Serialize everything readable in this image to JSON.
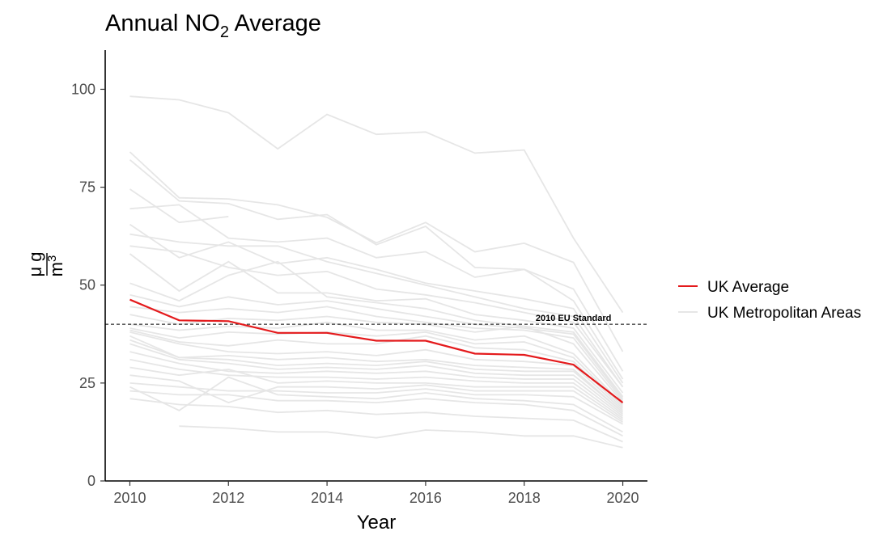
{
  "chart_data": {
    "type": "line",
    "title": "Annual NO₂ Average",
    "title_parts": {
      "main": "Annual NO",
      "sub": "2",
      "rest": " Average"
    },
    "xlabel": "Year",
    "ylabel": {
      "numerator": "μ g",
      "denominator": "m",
      "superscript": "3"
    },
    "xlim": [
      2009.5,
      2020.5
    ],
    "ylim": [
      0,
      110
    ],
    "x_ticks": [
      2010,
      2012,
      2014,
      2016,
      2018,
      2020
    ],
    "y_ticks": [
      0,
      25,
      50,
      75,
      100
    ],
    "grid": false,
    "legend_position": "right",
    "reference_line": {
      "y": 40,
      "label": "2010 EU Standard",
      "style": "dashed",
      "color": "#000000"
    },
    "x": [
      2010,
      2011,
      2012,
      2013,
      2014,
      2015,
      2016,
      2017,
      2018,
      2019,
      2020
    ],
    "series": [
      {
        "name": "UK Average",
        "color": "#e41a1c",
        "values": [
          46.3,
          41.0,
          40.8,
          37.8,
          37.8,
          35.8,
          35.8,
          32.5,
          32.2,
          29.7,
          20.0
        ]
      },
      {
        "name": "UK Metropolitan Areas",
        "color": "#e6e6e6",
        "lines": [
          [
            98.2,
            97.3,
            94.0,
            84.8,
            93.6,
            88.5,
            89.1,
            83.7,
            84.5,
            62.0,
            43.0
          ],
          [
            84.0,
            72.3,
            72.0,
            70.5,
            67.3,
            60.8,
            66.0,
            58.5,
            60.7,
            55.8,
            33.0
          ],
          [
            82.0,
            71.5,
            70.8,
            66.8,
            68.0,
            60.3,
            65.0,
            54.5,
            54.0,
            49.0,
            28.0
          ],
          [
            74.5,
            66.0,
            67.5,
            null,
            null,
            null,
            null,
            null,
            null,
            null,
            null
          ],
          [
            69.5,
            70.5,
            62.0,
            61.0,
            62.0,
            57.0,
            58.5,
            52.0,
            54.0,
            46.0,
            26.0
          ],
          [
            65.5,
            57.0,
            61.0,
            55.5,
            57.0,
            54.0,
            50.5,
            48.5,
            46.5,
            44.0,
            25.0
          ],
          [
            63.0,
            61.0,
            60.0,
            60.0,
            56.0,
            53.0,
            50.0,
            47.0,
            44.0,
            42.0,
            24.0
          ],
          [
            60.0,
            58.5,
            54.5,
            52.5,
            53.5,
            49.0,
            47.5,
            45.5,
            43.0,
            40.5,
            24.0
          ],
          [
            58.0,
            48.5,
            56.0,
            48.0,
            48.0,
            46.0,
            46.5,
            42.5,
            41.0,
            39.0,
            22.5
          ],
          [
            50.5,
            46.0,
            52.5,
            56.0,
            47.0,
            45.5,
            44.0,
            41.0,
            39.5,
            38.0,
            21.5
          ],
          [
            47.5,
            44.5,
            47.0,
            45.0,
            46.0,
            44.0,
            42.0,
            40.0,
            39.0,
            37.5,
            21.0
          ],
          [
            44.5,
            43.0,
            44.0,
            43.0,
            44.5,
            42.0,
            40.5,
            39.0,
            38.5,
            36.5,
            20.5
          ],
          [
            42.5,
            40.0,
            41.5,
            41.0,
            42.0,
            40.5,
            40.0,
            38.0,
            39.5,
            35.0,
            20.0
          ],
          [
            40.0,
            38.5,
            39.5,
            39.0,
            40.5,
            38.5,
            38.5,
            36.0,
            37.0,
            32.5,
            19.5
          ],
          [
            39.0,
            36.5,
            38.0,
            37.5,
            38.0,
            37.0,
            38.0,
            35.0,
            35.5,
            31.5,
            19.0
          ],
          [
            38.5,
            35.5,
            34.5,
            36.0,
            35.0,
            35.0,
            37.0,
            34.0,
            33.5,
            30.5,
            18.5
          ],
          [
            38.0,
            35.0,
            33.0,
            32.5,
            33.0,
            32.0,
            33.5,
            31.0,
            30.5,
            29.5,
            18.0
          ],
          [
            37.0,
            31.5,
            32.0,
            31.0,
            31.5,
            30.5,
            31.0,
            29.5,
            29.0,
            28.5,
            17.5
          ],
          [
            36.0,
            31.5,
            31.0,
            29.5,
            30.0,
            29.5,
            30.5,
            28.5,
            28.0,
            28.0,
            17.5
          ],
          [
            35.0,
            31.0,
            30.0,
            28.5,
            29.0,
            28.5,
            29.5,
            27.5,
            27.0,
            27.0,
            17.0
          ],
          [
            33.0,
            30.0,
            28.0,
            27.5,
            28.0,
            27.5,
            28.0,
            26.5,
            26.0,
            26.0,
            16.5
          ],
          [
            31.0,
            28.5,
            27.0,
            26.5,
            26.5,
            26.0,
            26.5,
            25.5,
            25.0,
            25.0,
            16.0
          ],
          [
            29.0,
            27.0,
            28.5,
            25.0,
            25.5,
            25.0,
            25.0,
            24.0,
            24.0,
            24.0,
            15.5
          ],
          [
            27.0,
            25.5,
            20.0,
            24.0,
            24.0,
            23.5,
            24.5,
            23.0,
            23.0,
            23.0,
            15.0
          ],
          [
            25.0,
            24.0,
            23.0,
            23.0,
            22.5,
            22.5,
            23.5,
            22.0,
            22.0,
            21.5,
            14.5
          ],
          [
            24.0,
            18.0,
            26.5,
            22.0,
            21.5,
            21.0,
            22.5,
            21.0,
            20.5,
            19.5,
            12.5
          ],
          [
            23.0,
            22.0,
            22.0,
            20.5,
            20.5,
            20.0,
            21.0,
            20.0,
            19.5,
            18.0,
            11.5
          ],
          [
            21.0,
            19.5,
            19.0,
            17.5,
            18.0,
            17.0,
            17.5,
            16.5,
            16.0,
            15.5,
            10.0
          ],
          [
            null,
            14.0,
            13.5,
            12.5,
            12.5,
            11.0,
            13.0,
            12.5,
            11.5,
            11.5,
            8.5
          ]
        ]
      }
    ]
  }
}
